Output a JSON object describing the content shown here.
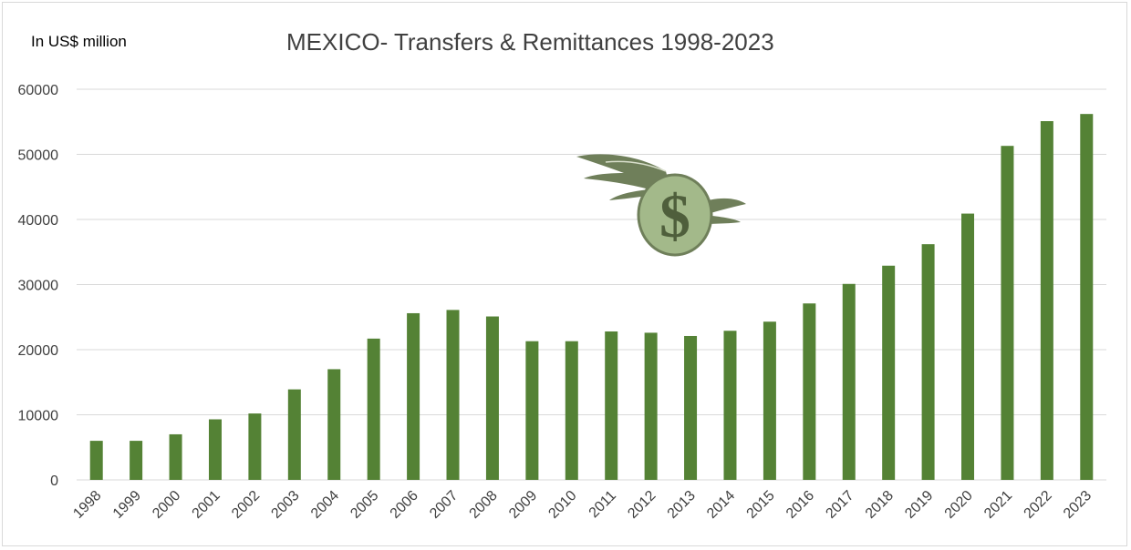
{
  "chart_data": {
    "type": "bar",
    "title": "MEXICO- Transfers & Remittances 1998-2023",
    "unit_label": "In US$ million",
    "xlabel": "",
    "ylabel": "",
    "ylim": [
      0,
      60000
    ],
    "yticks": [
      0,
      10000,
      20000,
      30000,
      40000,
      50000,
      60000
    ],
    "grid": true,
    "legend": "none",
    "bar_color": "#548235",
    "categories": [
      "1998",
      "1999",
      "2000",
      "2001",
      "2002",
      "2003",
      "2004",
      "2005",
      "2006",
      "2007",
      "2008",
      "2009",
      "2010",
      "2011",
      "2012",
      "2013",
      "2014",
      "2015",
      "2016",
      "2017",
      "2018",
      "2019",
      "2020",
      "2021",
      "2022",
      "2023"
    ],
    "values": [
      6000,
      6000,
      7000,
      9300,
      10200,
      13900,
      17000,
      21700,
      25600,
      26100,
      25100,
      21300,
      21300,
      22800,
      22600,
      22100,
      22900,
      24300,
      27100,
      30100,
      32900,
      36200,
      40900,
      51300,
      55100,
      56200
    ]
  },
  "decoration": {
    "icon": "winged-dollar-icon",
    "colors": {
      "wing": "#6f7f5a",
      "coin": "#a3b98a"
    }
  }
}
